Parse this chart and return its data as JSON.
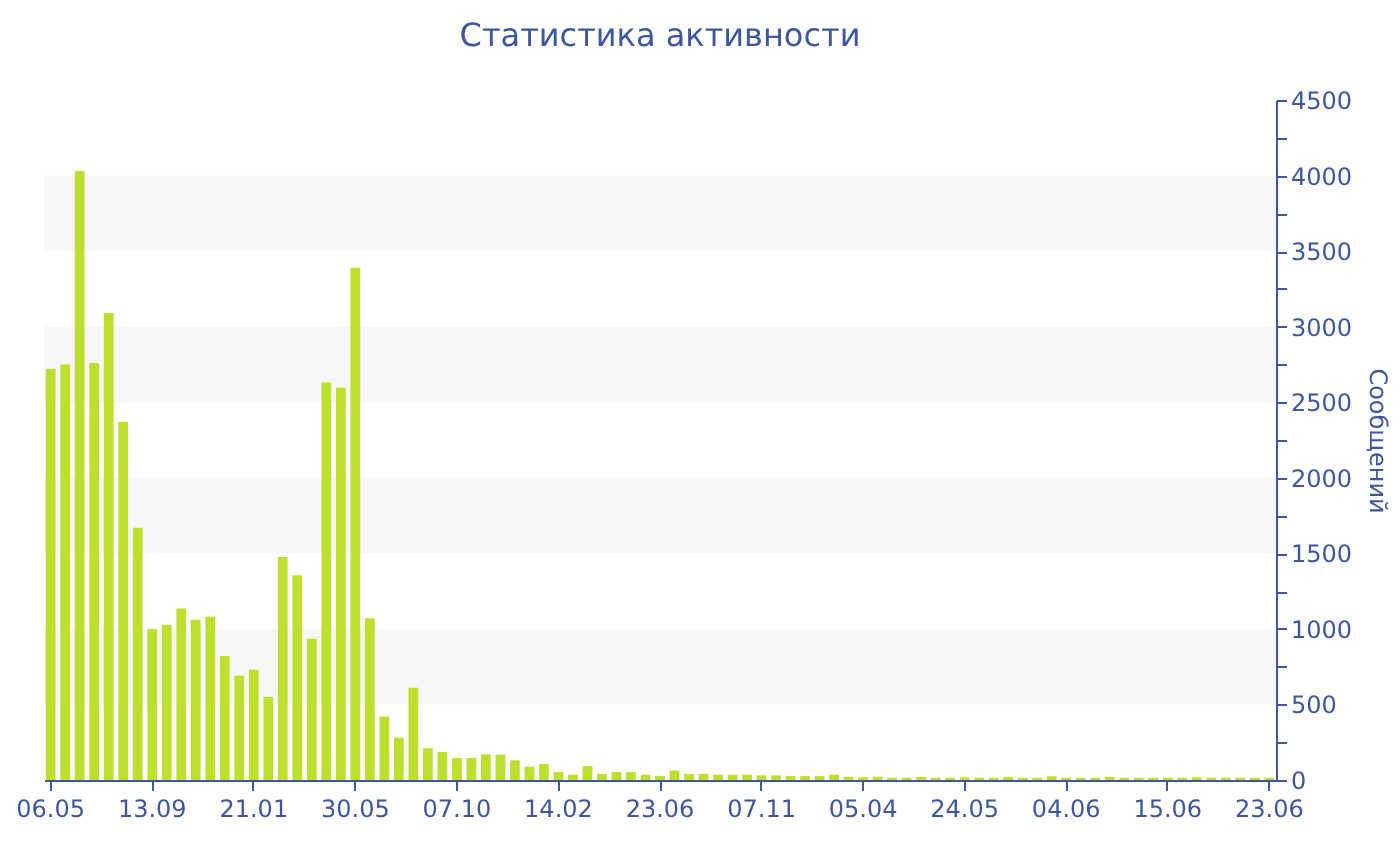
{
  "chart_data": {
    "type": "bar",
    "title": "Статистика активности",
    "ylabel": "Сообщений",
    "categories": [
      "06.05",
      null,
      null,
      null,
      null,
      null,
      null,
      "13.09",
      null,
      null,
      null,
      null,
      null,
      null,
      "21.01",
      null,
      null,
      null,
      null,
      null,
      null,
      "30.05",
      null,
      null,
      null,
      null,
      null,
      null,
      "07.10",
      null,
      null,
      null,
      null,
      null,
      null,
      "14.02",
      null,
      null,
      null,
      null,
      null,
      null,
      "23.06",
      null,
      null,
      null,
      null,
      null,
      null,
      "07.11",
      null,
      null,
      null,
      null,
      null,
      null,
      "05.04",
      null,
      null,
      null,
      null,
      null,
      null,
      "24.05",
      null,
      null,
      null,
      null,
      null,
      null,
      "04.06",
      null,
      null,
      null,
      null,
      null,
      null,
      "15.06",
      null,
      null,
      null,
      null,
      null,
      null,
      "23.06"
    ],
    "series": [
      {
        "color": "#bde02f",
        "values": [
          2720,
          2750,
          4030,
          2760,
          3090,
          2370,
          1670,
          1000,
          1025,
          1135,
          1060,
          1080,
          820,
          690,
          730,
          550,
          1475,
          1355,
          935,
          2630,
          2595,
          3390,
          1070,
          420,
          280,
          610,
          210,
          185,
          145,
          145,
          170,
          168,
          130,
          88,
          106,
          53,
          35,
          93,
          40,
          53,
          53,
          35,
          26,
          62,
          40,
          40,
          35,
          35,
          35,
          31,
          31,
          26,
          26,
          26,
          35,
          22,
          18,
          22,
          15,
          15,
          20,
          15,
          15,
          18,
          15,
          15,
          20,
          15,
          15,
          25,
          15,
          15,
          15,
          20,
          15,
          15,
          15,
          15,
          15,
          18,
          15,
          15,
          15,
          15,
          15
        ]
      }
    ],
    "ylim": [
      0,
      4500
    ],
    "yticks": [
      0,
      {
        "value": 250,
        "label": null
      },
      500,
      {
        "value": 750,
        "label": null
      },
      1000,
      {
        "value": 1250,
        "label": null
      },
      1500,
      {
        "value": 1750,
        "label": null
      },
      2000,
      {
        "value": 2250,
        "label": null
      },
      2500,
      {
        "value": 2750,
        "label": null
      },
      3000,
      {
        "value": 3250,
        "label": null
      },
      3500,
      {
        "value": 3750,
        "label": null
      },
      4000,
      {
        "value": 4250,
        "label": null
      },
      4500
    ],
    "bands": [
      {
        "axis": "y",
        "from": 500,
        "to": 1000,
        "color": "#f7f7f7"
      },
      {
        "axis": "y",
        "from": 1500,
        "to": 2000,
        "color": "#f7f7f7"
      },
      {
        "axis": "y",
        "from": 2500,
        "to": 3000,
        "color": "#f7f7f7"
      },
      {
        "axis": "y",
        "from": 3500,
        "to": 4000,
        "color": "#f7f7f7"
      }
    ],
    "grid": false
  }
}
